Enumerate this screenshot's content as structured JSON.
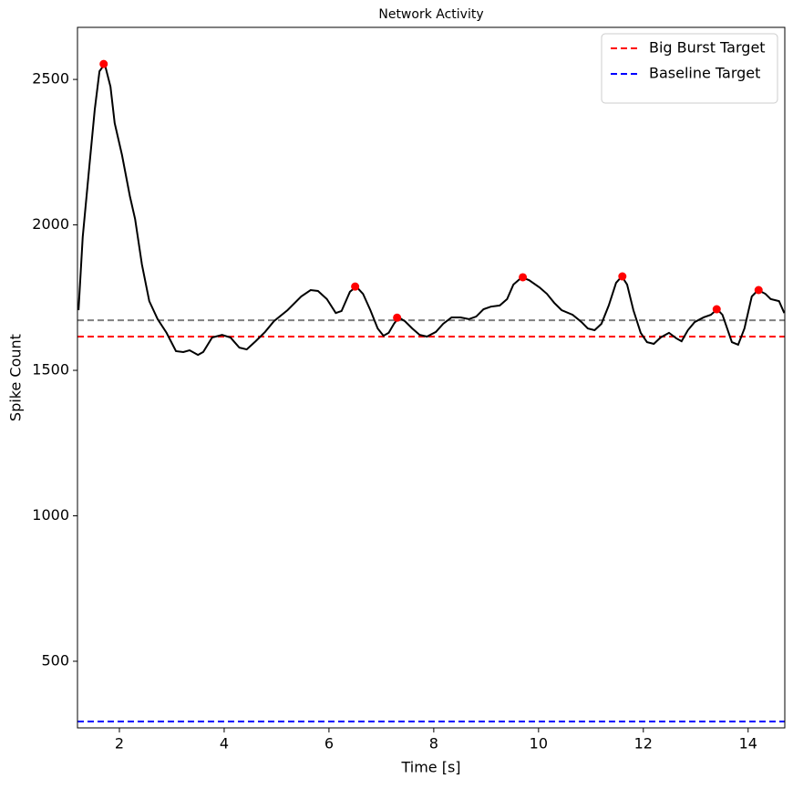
{
  "chart_data": {
    "type": "line",
    "title": "Network Activity",
    "x_label": "Time [s]",
    "y_label": "Spike Count",
    "x": [
      1.22,
      1.3,
      1.43,
      1.53,
      1.62,
      1.72,
      1.83,
      1.91,
      2.05,
      2.2,
      2.3,
      2.43,
      2.57,
      2.73,
      2.9,
      3.08,
      3.22,
      3.34,
      3.5,
      3.6,
      3.77,
      3.96,
      4.12,
      4.29,
      4.43,
      4.6,
      4.78,
      4.95,
      5.21,
      5.47,
      5.65,
      5.79,
      5.96,
      6.13,
      6.24,
      6.4,
      6.52,
      6.65,
      6.79,
      6.93,
      7.04,
      7.14,
      7.24,
      7.33,
      7.45,
      7.59,
      7.73,
      7.87,
      8.04,
      8.18,
      8.34,
      8.51,
      8.67,
      8.81,
      8.95,
      9.09,
      9.26,
      9.4,
      9.52,
      9.68,
      9.82,
      10.02,
      10.16,
      10.3,
      10.44,
      10.65,
      10.82,
      10.94,
      11.07,
      11.2,
      11.34,
      11.48,
      11.59,
      11.69,
      11.81,
      11.95,
      12.07,
      12.2,
      12.33,
      12.49,
      12.63,
      12.73,
      12.85,
      12.98,
      13.15,
      13.29,
      13.41,
      13.51,
      13.6,
      13.69,
      13.81,
      13.93,
      14.07,
      14.19,
      14.33,
      14.43,
      14.59,
      14.69
    ],
    "series": [
      {
        "color": "#000000",
        "values": [
          1707,
          1958,
          2208,
          2397,
          2528,
          2553,
          2475,
          2350,
          2240,
          2099,
          2020,
          1864,
          1738,
          1676,
          1629,
          1566,
          1563,
          1569,
          1553,
          1563,
          1613,
          1622,
          1613,
          1578,
          1572,
          1600,
          1632,
          1669,
          1707,
          1754,
          1776,
          1773,
          1745,
          1697,
          1704,
          1770,
          1788,
          1763,
          1707,
          1644,
          1619,
          1629,
          1660,
          1682,
          1669,
          1644,
          1622,
          1616,
          1632,
          1660,
          1682,
          1682,
          1676,
          1685,
          1710,
          1719,
          1723,
          1745,
          1795,
          1820,
          1810,
          1785,
          1763,
          1732,
          1707,
          1691,
          1666,
          1644,
          1638,
          1660,
          1723,
          1801,
          1823,
          1795,
          1707,
          1629,
          1597,
          1591,
          1613,
          1629,
          1610,
          1600,
          1638,
          1666,
          1682,
          1691,
          1710,
          1691,
          1644,
          1597,
          1588,
          1644,
          1754,
          1776,
          1763,
          1745,
          1738,
          1697
        ]
      }
    ],
    "peaks": {
      "color": "#ff0000",
      "x": [
        1.7,
        6.5,
        7.3,
        9.7,
        11.6,
        13.4,
        14.2
      ],
      "values": [
        2553,
        1788,
        1681,
        1820,
        1823,
        1710,
        1776
      ]
    },
    "hlines": [
      {
        "name": "Big Burst Target",
        "value": 1616,
        "color": "#ff0000"
      },
      {
        "name": "Baseline Target",
        "value": 293,
        "color": "#0000ff"
      },
      {
        "value": 1672,
        "color": "#808080"
      }
    ],
    "xlim": [
      1.2,
      14.7
    ],
    "ylim": [
      271,
      2679
    ],
    "xticks": [
      2,
      4,
      6,
      8,
      10,
      12,
      14
    ],
    "yticks": [
      500,
      1000,
      1500,
      2000,
      2500
    ],
    "legend": "upper right"
  }
}
